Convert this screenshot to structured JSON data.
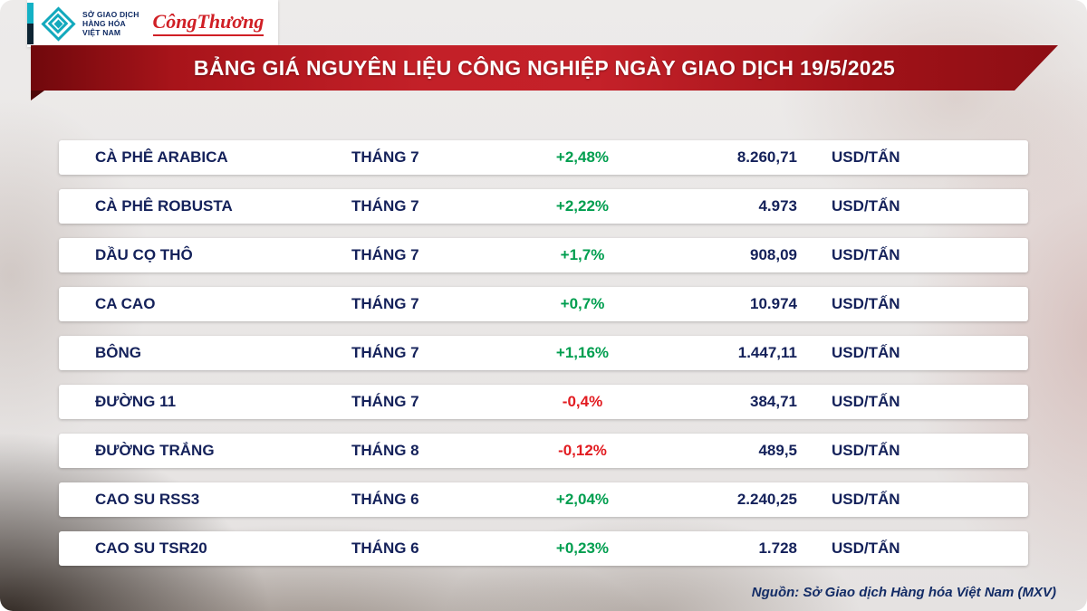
{
  "header": {
    "logo": {
      "mxv_text": "SỞ GIAO DỊCH\nHÀNG HÓA\nVIỆT NAM",
      "brand": "CôngThương"
    },
    "title": "BẢNG GIÁ NGUYÊN LIỆU CÔNG NGHIỆP NGÀY GIAO DỊCH 19/5/2025"
  },
  "table": {
    "rows": [
      {
        "name": "CÀ PHÊ ARABICA",
        "month": "THÁNG 7",
        "change": "+2,48%",
        "direction": "up",
        "price": "8.260,71",
        "unit": "USD/TẤN"
      },
      {
        "name": "CÀ PHÊ ROBUSTA",
        "month": "THÁNG 7",
        "change": "+2,22%",
        "direction": "up",
        "price": "4.973",
        "unit": "USD/TẤN"
      },
      {
        "name": "DẦU CỌ THÔ",
        "month": "THÁNG 7",
        "change": "+1,7%",
        "direction": "up",
        "price": "908,09",
        "unit": "USD/TẤN"
      },
      {
        "name": "CA CAO",
        "month": "THÁNG 7",
        "change": "+0,7%",
        "direction": "up",
        "price": "10.974",
        "unit": "USD/TẤN"
      },
      {
        "name": "BÔNG",
        "month": "THÁNG 7",
        "change": "+1,16%",
        "direction": "up",
        "price": "1.447,11",
        "unit": "USD/TẤN"
      },
      {
        "name": "ĐƯỜNG 11",
        "month": "THÁNG 7",
        "change": "-0,4%",
        "direction": "down",
        "price": "384,71",
        "unit": "USD/TẤN"
      },
      {
        "name": "ĐƯỜNG TRẮNG",
        "month": "THÁNG 8",
        "change": "-0,12%",
        "direction": "down",
        "price": "489,5",
        "unit": "USD/TẤN"
      },
      {
        "name": "CAO SU RSS3",
        "month": "THÁNG 6",
        "change": "+2,04%",
        "direction": "up",
        "price": "2.240,25",
        "unit": "USD/TẤN"
      },
      {
        "name": "CAO SU TSR20",
        "month": "THÁNG 6",
        "change": "+0,23%",
        "direction": "up",
        "price": "1.728",
        "unit": "USD/TẤN"
      }
    ]
  },
  "footer": {
    "source": "Nguồn: Sở Giao dịch Hàng hóa Việt Nam (MXV)"
  },
  "colors": {
    "up": "#009e4f",
    "down": "#e21c21",
    "text_navy": "#14215a",
    "banner_red": "#c32028",
    "logo_teal": "#12a9bd",
    "brand_red": "#d01f25"
  },
  "chart_data": {
    "type": "table",
    "title": "BẢNG GIÁ NGUYÊN LIỆU CÔNG NGHIỆP NGÀY GIAO DỊCH 19/5/2025",
    "rows": [
      {
        "commodity": "CÀ PHÊ ARABICA",
        "contract_month": "THÁNG 7",
        "change_pct": 2.48,
        "price": 8260.71,
        "unit": "USD/TẤN"
      },
      {
        "commodity": "CÀ PHÊ ROBUSTA",
        "contract_month": "THÁNG 7",
        "change_pct": 2.22,
        "price": 4973,
        "unit": "USD/TẤN"
      },
      {
        "commodity": "DẦU CỌ THÔ",
        "contract_month": "THÁNG 7",
        "change_pct": 1.7,
        "price": 908.09,
        "unit": "USD/TẤN"
      },
      {
        "commodity": "CA CAO",
        "contract_month": "THÁNG 7",
        "change_pct": 0.7,
        "price": 10974,
        "unit": "USD/TẤN"
      },
      {
        "commodity": "BÔNG",
        "contract_month": "THÁNG 7",
        "change_pct": 1.16,
        "price": 1447.11,
        "unit": "USD/TẤN"
      },
      {
        "commodity": "ĐƯỜNG 11",
        "contract_month": "THÁNG 7",
        "change_pct": -0.4,
        "price": 384.71,
        "unit": "USD/TẤN"
      },
      {
        "commodity": "ĐƯỜNG TRẮNG",
        "contract_month": "THÁNG 8",
        "change_pct": -0.12,
        "price": 489.5,
        "unit": "USD/TẤN"
      },
      {
        "commodity": "CAO SU RSS3",
        "contract_month": "THÁNG 6",
        "change_pct": 2.04,
        "price": 2240.25,
        "unit": "USD/TẤN"
      },
      {
        "commodity": "CAO SU TSR20",
        "contract_month": "THÁNG 6",
        "change_pct": 0.23,
        "price": 1728,
        "unit": "USD/TẤN"
      }
    ],
    "source": "Nguồn: Sở Giao dịch Hàng hóa Việt Nam (MXV)"
  }
}
